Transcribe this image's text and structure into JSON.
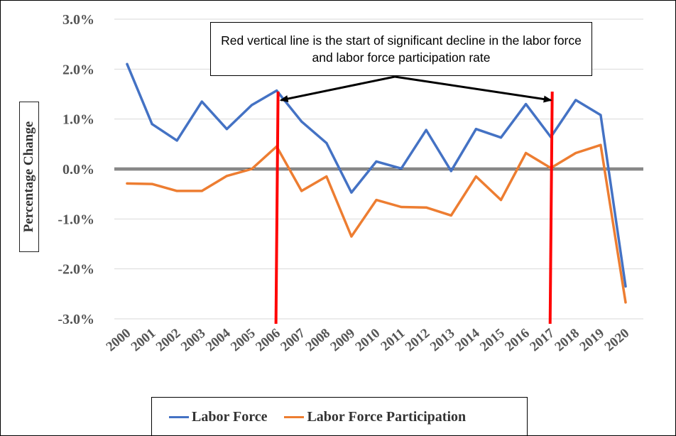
{
  "chart_data": {
    "type": "line",
    "title": "",
    "xlabel": "",
    "ylabel": "Percentage Change",
    "ylim": [
      -3.0,
      3.0
    ],
    "yticks": [
      "3.0%",
      "2.0%",
      "1.0%",
      "0.0%",
      "-1.0%",
      "-2.0%",
      "-3.0%"
    ],
    "ytick_values": [
      3,
      2,
      1,
      0,
      -1,
      -2,
      -3
    ],
    "categories": [
      "2000",
      "2001",
      "2002",
      "2003",
      "2004",
      "2005",
      "2006",
      "2007",
      "2008",
      "2009",
      "2010",
      "2011",
      "2012",
      "2013",
      "2014",
      "2015",
      "2016",
      "2017",
      "2018",
      "2019",
      "2020"
    ],
    "series": [
      {
        "name": "Labor Force",
        "color": "#4472C4",
        "values": [
          2.1,
          0.9,
          0.57,
          1.35,
          0.8,
          1.28,
          1.57,
          0.95,
          0.52,
          -0.47,
          0.15,
          0.01,
          0.78,
          -0.04,
          0.8,
          0.63,
          1.3,
          0.64,
          1.38,
          1.08,
          -2.35
        ]
      },
      {
        "name": "Labor Force Participation",
        "color": "#ED7D31",
        "values": [
          -0.29,
          -0.3,
          -0.44,
          -0.44,
          -0.14,
          0.0,
          0.45,
          -0.44,
          -0.15,
          -1.35,
          -0.62,
          -0.76,
          -0.77,
          -0.93,
          -0.15,
          -0.62,
          0.32,
          0.02,
          0.32,
          0.48,
          -2.67
        ]
      }
    ],
    "vertical_markers": [
      {
        "category": "2006",
        "color": "#FF0000"
      },
      {
        "category": "2017",
        "color": "#FF0000"
      }
    ],
    "annotation": "Red vertical line is the start of significant decline in the labor force and labor force participation rate",
    "grid": true,
    "legend_position": "bottom"
  }
}
